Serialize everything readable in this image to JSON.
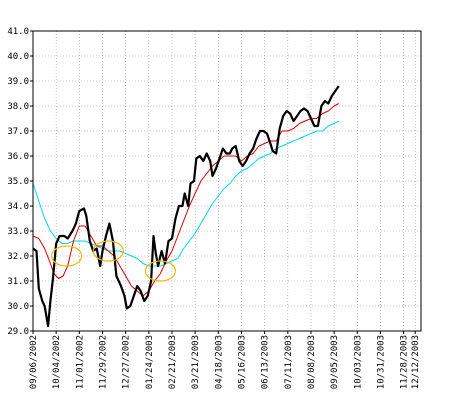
{
  "chart_data": {
    "type": "line",
    "title": "",
    "xlabel": "",
    "ylabel": "",
    "ylim": [
      29.0,
      41.0
    ],
    "y_ticks": [
      "29.0",
      "30.0",
      "31.0",
      "32.0",
      "33.0",
      "34.0",
      "35.0",
      "36.0",
      "37.0",
      "38.0",
      "39.0",
      "40.0",
      "41.0"
    ],
    "x_tick_labels": [
      "09/06/2002",
      "10/04/2002",
      "11/01/2002",
      "11/29/2002",
      "12/27/2002",
      "01/24/2003",
      "02/21/2003",
      "03/21/2003",
      "04/18/2003",
      "05/16/2003",
      "06/13/2003",
      "07/11/2003",
      "08/08/2003",
      "09/05/2003",
      "10/03/2003",
      "10/31/2003",
      "11/28/2003",
      "12/12/2003"
    ],
    "x_tick_index": [
      0,
      20,
      40,
      60,
      80,
      100,
      120,
      140,
      160,
      180,
      200,
      220,
      240,
      260,
      280,
      300,
      320,
      330
    ],
    "x_domain": [
      0,
      335
    ],
    "grid": true,
    "legend": "none",
    "colors": {
      "price": "#000000",
      "ma_short": "#dd0000",
      "ma_long": "#00d8e8",
      "marker": "#f0b800",
      "grid": "#999999",
      "axis": "#000000"
    },
    "series": [
      {
        "key": "price",
        "points": [
          [
            0,
            32.3
          ],
          [
            3,
            32.2
          ],
          [
            5,
            30.7
          ],
          [
            8,
            30.2
          ],
          [
            10,
            30.0
          ],
          [
            13,
            29.2
          ],
          [
            15,
            30.2
          ],
          [
            17,
            31.0
          ],
          [
            20,
            32.5
          ],
          [
            23,
            32.8
          ],
          [
            27,
            32.8
          ],
          [
            30,
            32.7
          ],
          [
            34,
            33.0
          ],
          [
            37,
            33.3
          ],
          [
            40,
            33.8
          ],
          [
            44,
            33.9
          ],
          [
            46,
            33.6
          ],
          [
            49,
            32.6
          ],
          [
            52,
            32.2
          ],
          [
            55,
            32.3
          ],
          [
            58,
            31.6
          ],
          [
            60,
            32.2
          ],
          [
            63,
            32.8
          ],
          [
            66,
            33.3
          ],
          [
            69,
            32.6
          ],
          [
            72,
            31.2
          ],
          [
            76,
            30.8
          ],
          [
            79,
            30.4
          ],
          [
            81,
            29.9
          ],
          [
            84,
            30.0
          ],
          [
            87,
            30.4
          ],
          [
            90,
            30.8
          ],
          [
            93,
            30.6
          ],
          [
            96,
            30.2
          ],
          [
            99,
            30.4
          ],
          [
            102,
            31.0
          ],
          [
            104,
            32.8
          ],
          [
            106,
            32.1
          ],
          [
            108,
            31.6
          ],
          [
            111,
            32.2
          ],
          [
            114,
            31.7
          ],
          [
            117,
            32.6
          ],
          [
            120,
            32.7
          ],
          [
            123,
            33.5
          ],
          [
            126,
            34.0
          ],
          [
            129,
            34.0
          ],
          [
            131,
            34.5
          ],
          [
            134,
            34.0
          ],
          [
            136,
            34.9
          ],
          [
            139,
            35.0
          ],
          [
            141,
            35.9
          ],
          [
            144,
            36.0
          ],
          [
            147,
            35.8
          ],
          [
            150,
            36.1
          ],
          [
            153,
            35.8
          ],
          [
            155,
            35.2
          ],
          [
            158,
            35.5
          ],
          [
            161,
            35.9
          ],
          [
            164,
            36.3
          ],
          [
            167,
            36.1
          ],
          [
            170,
            36.1
          ],
          [
            172,
            36.3
          ],
          [
            175,
            36.4
          ],
          [
            178,
            35.8
          ],
          [
            181,
            35.6
          ],
          [
            184,
            35.8
          ],
          [
            187,
            36.1
          ],
          [
            190,
            36.3
          ],
          [
            193,
            36.7
          ],
          [
            196,
            37.0
          ],
          [
            199,
            37.0
          ],
          [
            202,
            36.9
          ],
          [
            205,
            36.5
          ],
          [
            207,
            36.2
          ],
          [
            210,
            36.1
          ],
          [
            213,
            37.1
          ],
          [
            216,
            37.6
          ],
          [
            219,
            37.8
          ],
          [
            222,
            37.7
          ],
          [
            225,
            37.4
          ],
          [
            228,
            37.6
          ],
          [
            231,
            37.8
          ],
          [
            234,
            37.9
          ],
          [
            237,
            37.8
          ],
          [
            240,
            37.5
          ],
          [
            243,
            37.2
          ],
          [
            246,
            37.2
          ],
          [
            249,
            38.0
          ],
          [
            252,
            38.2
          ],
          [
            255,
            38.1
          ],
          [
            258,
            38.4
          ],
          [
            261,
            38.6
          ],
          [
            264,
            38.8
          ]
        ]
      },
      {
        "key": "ma_short",
        "points": [
          [
            0,
            32.8
          ],
          [
            5,
            32.7
          ],
          [
            10,
            32.3
          ],
          [
            15,
            31.7
          ],
          [
            18,
            31.3
          ],
          [
            22,
            31.1
          ],
          [
            26,
            31.2
          ],
          [
            30,
            31.6
          ],
          [
            35,
            32.6
          ],
          [
            40,
            33.2
          ],
          [
            45,
            33.2
          ],
          [
            50,
            32.8
          ],
          [
            55,
            32.4
          ],
          [
            60,
            32.4
          ],
          [
            65,
            32.2
          ],
          [
            70,
            32.0
          ],
          [
            75,
            31.6
          ],
          [
            80,
            31.2
          ],
          [
            85,
            30.8
          ],
          [
            90,
            30.6
          ],
          [
            95,
            30.4
          ],
          [
            100,
            30.6
          ],
          [
            105,
            31.0
          ],
          [
            110,
            31.3
          ],
          [
            115,
            31.8
          ],
          [
            120,
            32.2
          ],
          [
            125,
            32.8
          ],
          [
            130,
            33.4
          ],
          [
            135,
            34.0
          ],
          [
            140,
            34.5
          ],
          [
            145,
            35.0
          ],
          [
            150,
            35.3
          ],
          [
            155,
            35.6
          ],
          [
            160,
            35.8
          ],
          [
            165,
            36.0
          ],
          [
            170,
            36.0
          ],
          [
            175,
            36.0
          ],
          [
            180,
            35.8
          ],
          [
            185,
            36.0
          ],
          [
            190,
            36.1
          ],
          [
            195,
            36.4
          ],
          [
            200,
            36.5
          ],
          [
            205,
            36.6
          ],
          [
            210,
            36.6
          ],
          [
            215,
            37.0
          ],
          [
            220,
            37.0
          ],
          [
            225,
            37.1
          ],
          [
            230,
            37.3
          ],
          [
            235,
            37.4
          ],
          [
            240,
            37.5
          ],
          [
            245,
            37.5
          ],
          [
            250,
            37.7
          ],
          [
            255,
            37.8
          ],
          [
            260,
            38.0
          ],
          [
            264,
            38.1
          ]
        ]
      },
      {
        "key": "ma_long",
        "points": [
          [
            0,
            34.9
          ],
          [
            5,
            34.2
          ],
          [
            10,
            33.5
          ],
          [
            15,
            33.0
          ],
          [
            20,
            32.7
          ],
          [
            25,
            32.5
          ],
          [
            30,
            32.5
          ],
          [
            35,
            32.6
          ],
          [
            40,
            32.6
          ],
          [
            45,
            32.6
          ],
          [
            50,
            32.5
          ],
          [
            55,
            32.4
          ],
          [
            60,
            32.3
          ],
          [
            65,
            32.2
          ],
          [
            70,
            32.2
          ],
          [
            75,
            32.2
          ],
          [
            80,
            32.1
          ],
          [
            85,
            32.0
          ],
          [
            90,
            31.9
          ],
          [
            95,
            31.7
          ],
          [
            100,
            31.6
          ],
          [
            105,
            31.6
          ],
          [
            110,
            31.6
          ],
          [
            115,
            31.7
          ],
          [
            120,
            31.8
          ],
          [
            125,
            31.9
          ],
          [
            130,
            32.3
          ],
          [
            135,
            32.6
          ],
          [
            140,
            32.9
          ],
          [
            145,
            33.3
          ],
          [
            150,
            33.7
          ],
          [
            155,
            34.1
          ],
          [
            160,
            34.4
          ],
          [
            165,
            34.7
          ],
          [
            170,
            34.9
          ],
          [
            175,
            35.2
          ],
          [
            180,
            35.4
          ],
          [
            185,
            35.5
          ],
          [
            190,
            35.7
          ],
          [
            195,
            35.9
          ],
          [
            200,
            36.0
          ],
          [
            205,
            36.1
          ],
          [
            210,
            36.3
          ],
          [
            215,
            36.4
          ],
          [
            220,
            36.5
          ],
          [
            225,
            36.6
          ],
          [
            230,
            36.7
          ],
          [
            235,
            36.8
          ],
          [
            240,
            36.9
          ],
          [
            245,
            37.0
          ],
          [
            250,
            37.0
          ],
          [
            255,
            37.2
          ],
          [
            260,
            37.3
          ],
          [
            264,
            37.4
          ]
        ]
      }
    ],
    "annotations": [
      {
        "type": "ellipse",
        "x": 29,
        "y": 32.0
      },
      {
        "type": "ellipse",
        "x": 65,
        "y": 32.2
      },
      {
        "type": "ellipse",
        "x": 110,
        "y": 31.4
      }
    ]
  }
}
